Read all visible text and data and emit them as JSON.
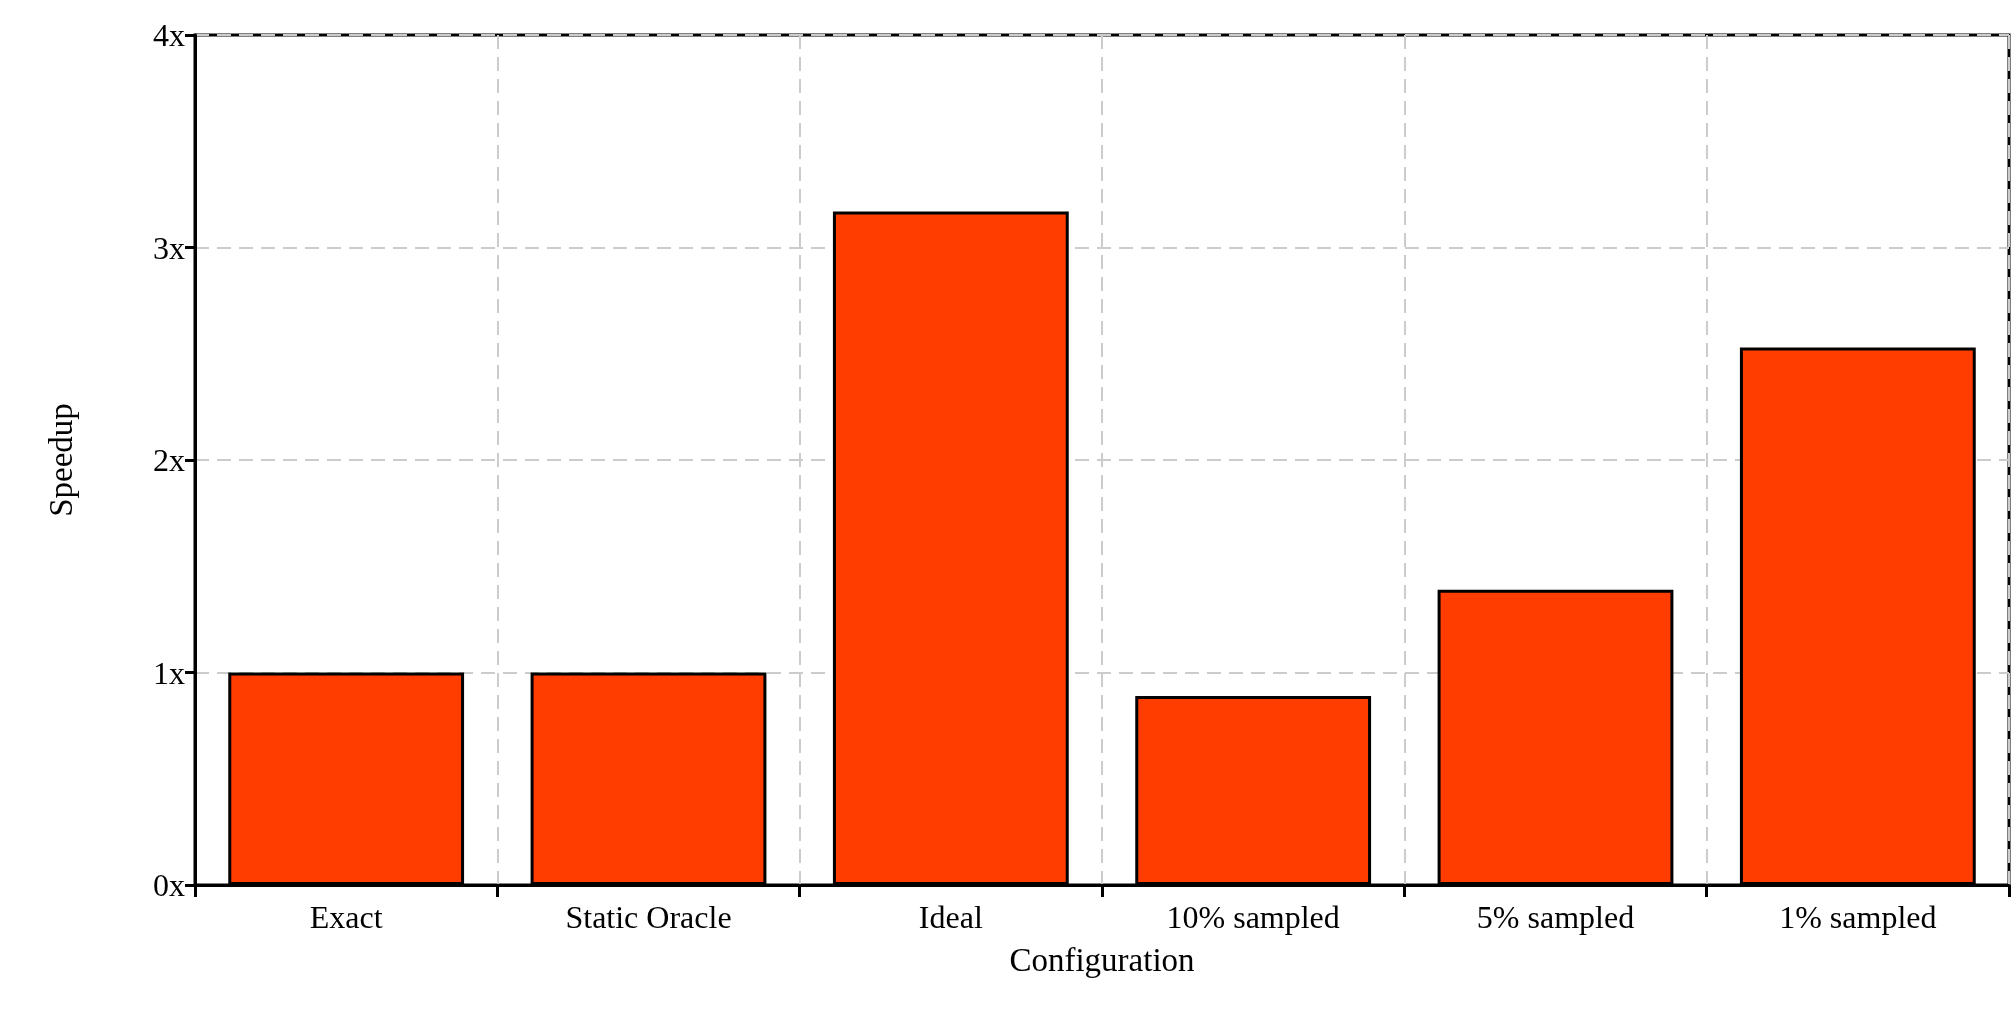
{
  "chart_data": {
    "type": "bar",
    "xlabel": "Configuration",
    "ylabel": "Speedup",
    "categories": [
      "Exact",
      "Static Oracle",
      "Ideal",
      "10% sampled",
      "5% sampled",
      "1% sampled"
    ],
    "values": [
      1.0,
      1.0,
      3.17,
      0.89,
      1.39,
      2.53
    ],
    "color": "#ff3d00",
    "ylim": [
      0,
      4
    ],
    "yticks": [
      {
        "value": 0,
        "label": "0x"
      },
      {
        "value": 1,
        "label": "1x"
      },
      {
        "value": 2,
        "label": "2x"
      },
      {
        "value": 3,
        "label": "3x"
      },
      {
        "value": 4,
        "label": "4x"
      }
    ],
    "grid": true
  }
}
